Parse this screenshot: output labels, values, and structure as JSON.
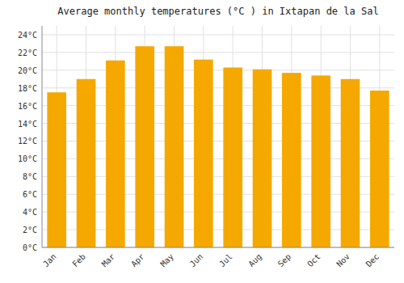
{
  "chart_data": {
    "type": "bar",
    "title": "Average monthly temperatures (°C ) in Ixtapan de la Sal",
    "categories": [
      "Jan",
      "Feb",
      "Mar",
      "Apr",
      "May",
      "Jun",
      "Jul",
      "Aug",
      "Sep",
      "Oct",
      "Nov",
      "Dec"
    ],
    "values": [
      17.5,
      19.0,
      21.1,
      22.7,
      22.7,
      21.2,
      20.3,
      20.1,
      19.7,
      19.4,
      19.0,
      17.7
    ],
    "color": "#F5A800",
    "ylim": [
      0,
      25
    ],
    "yticks": [
      {
        "value": 0,
        "label": "0°C"
      },
      {
        "value": 2,
        "label": "2°C"
      },
      {
        "value": 4,
        "label": "4°C"
      },
      {
        "value": 6,
        "label": "6°C"
      },
      {
        "value": 8,
        "label": "8°C"
      },
      {
        "value": 10,
        "label": "10°C"
      },
      {
        "value": 12,
        "label": "12°C"
      },
      {
        "value": 14,
        "label": "14°C"
      },
      {
        "value": 16,
        "label": "16°C"
      },
      {
        "value": 18,
        "label": "18°C"
      },
      {
        "value": 20,
        "label": "20°C"
      },
      {
        "value": 22,
        "label": "22°C"
      },
      {
        "value": 24,
        "label": "24°C"
      }
    ],
    "grid": true
  }
}
